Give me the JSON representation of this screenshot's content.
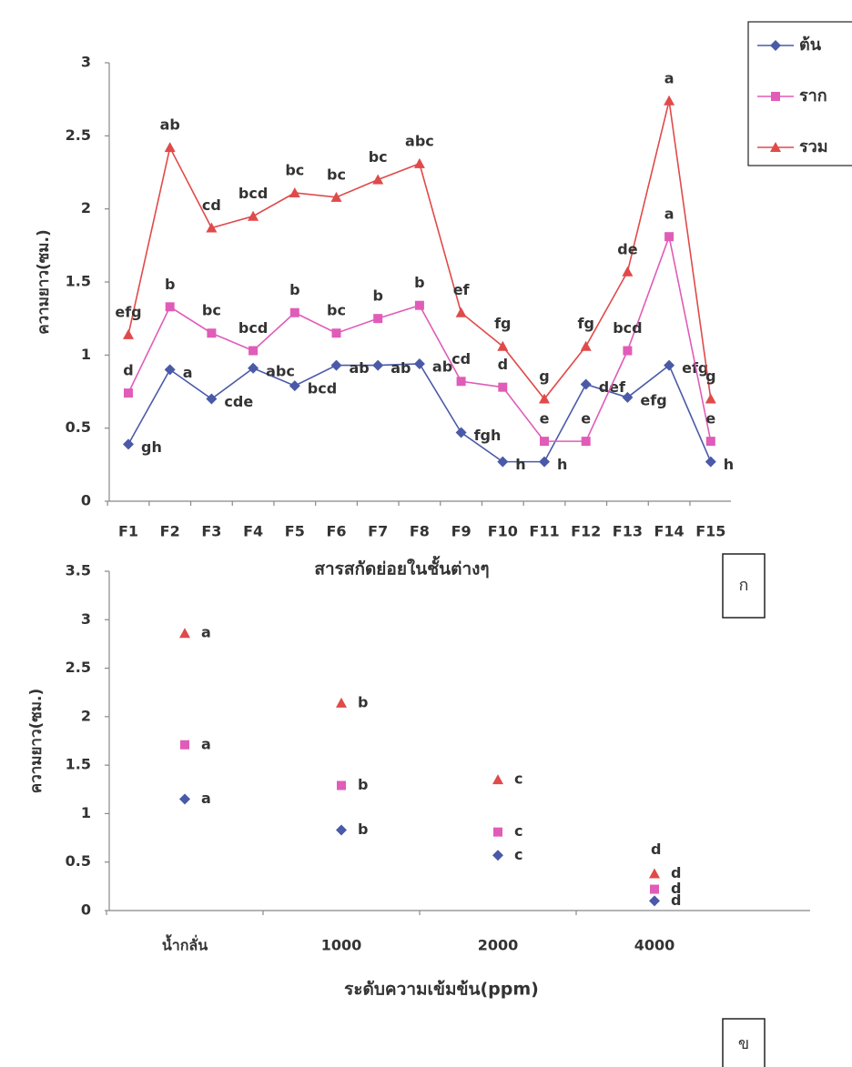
{
  "chart_data": [
    {
      "type": "line",
      "x_label": "สารสกัดย่อยในชั้นต่างๆ",
      "y_label": "ความยาว(ซม.)",
      "panel_label": "ก",
      "categories": [
        "F1",
        "F2",
        "F3",
        "F4",
        "F5",
        "F6",
        "F7",
        "F8",
        "F9",
        "F10",
        "F11",
        "F12",
        "F13",
        "F14",
        "F15"
      ],
      "ylim": [
        0,
        3
      ],
      "yticks": [
        0,
        0.5,
        1,
        1.5,
        2,
        2.5,
        3
      ],
      "legend": "top-right",
      "series": [
        {
          "name": "ต้น",
          "color": "#4a5aa8",
          "marker": "diamond",
          "values": [
            0.39,
            0.9,
            0.7,
            0.91,
            0.79,
            0.93,
            0.93,
            0.94,
            0.47,
            0.27,
            0.27,
            0.8,
            0.71,
            0.93,
            0.27
          ],
          "letters": [
            "gh",
            "a",
            "cde",
            "abc",
            "bcd",
            "ab",
            "ab",
            "ab",
            "fgh",
            "h",
            "h",
            "def",
            "efg",
            "efg",
            "h"
          ]
        },
        {
          "name": "ราก",
          "color": "#e05cb8",
          "marker": "square",
          "values": [
            0.74,
            1.33,
            1.15,
            1.03,
            1.29,
            1.15,
            1.25,
            1.34,
            0.82,
            0.78,
            0.41,
            0.41,
            1.03,
            1.81,
            0.41
          ],
          "letters": [
            "d",
            "b",
            "bc",
            "bcd",
            "b",
            "bc",
            "b",
            "b",
            "cd",
            "d",
            "e",
            "e",
            "bcd",
            "a",
            "e"
          ]
        },
        {
          "name": "รวม",
          "color": "#e04a4a",
          "marker": "triangle",
          "values": [
            1.14,
            2.42,
            1.87,
            1.95,
            2.11,
            2.08,
            2.2,
            2.31,
            1.29,
            1.06,
            0.7,
            1.06,
            1.57,
            2.74,
            0.7
          ],
          "letters": [
            "efg",
            "ab",
            "cd",
            "bcd",
            "bc",
            "bc",
            "bc",
            "abc",
            "ef",
            "fg",
            "g",
            "fg",
            "de",
            "a",
            "g"
          ]
        }
      ]
    },
    {
      "type": "scatter",
      "x_label": "ระดับความเข้มข้น(ppm)",
      "y_label": "ความยาว(ซม.)",
      "panel_label": "ข",
      "categories": [
        "น้ำกลั่น",
        "1000",
        "2000",
        "4000"
      ],
      "ylim": [
        0,
        3.5
      ],
      "yticks": [
        0,
        0.5,
        1,
        1.5,
        2,
        2.5,
        3,
        3.5
      ],
      "series": [
        {
          "color": "#e04a4a",
          "marker": "triangle",
          "values": [
            2.86,
            2.14,
            1.35,
            0.38
          ],
          "letters": [
            "a",
            "b",
            "c",
            "d"
          ]
        },
        {
          "color": "#e05cb8",
          "marker": "square",
          "values": [
            1.71,
            1.29,
            0.81,
            0.22
          ],
          "letters": [
            "a",
            "b",
            "c",
            "d"
          ]
        },
        {
          "color": "#4a5aa8",
          "marker": "diamond",
          "values": [
            1.15,
            0.83,
            0.57,
            0.1
          ],
          "letters": [
            "a",
            "b",
            "c",
            "d"
          ]
        }
      ],
      "extra_letter": "d"
    }
  ]
}
